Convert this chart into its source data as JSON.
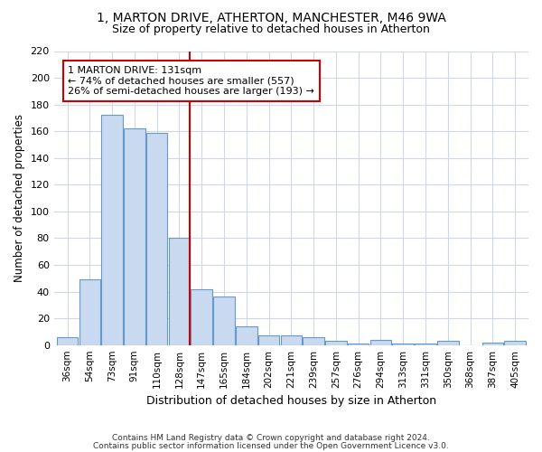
{
  "title": "1, MARTON DRIVE, ATHERTON, MANCHESTER, M46 9WA",
  "subtitle": "Size of property relative to detached houses in Atherton",
  "xlabel": "Distribution of detached houses by size in Atherton",
  "ylabel": "Number of detached properties",
  "categories": [
    "36sqm",
    "54sqm",
    "73sqm",
    "91sqm",
    "110sqm",
    "128sqm",
    "147sqm",
    "165sqm",
    "184sqm",
    "202sqm",
    "221sqm",
    "239sqm",
    "257sqm",
    "276sqm",
    "294sqm",
    "313sqm",
    "331sqm",
    "350sqm",
    "368sqm",
    "387sqm",
    "405sqm"
  ],
  "values": [
    6,
    49,
    172,
    162,
    159,
    80,
    42,
    36,
    14,
    7,
    7,
    6,
    3,
    1,
    4,
    1,
    1,
    3,
    0,
    2,
    3
  ],
  "bar_color": "#c8d9f0",
  "bar_edge_color": "#6699cc",
  "vline_color": "#cc0000",
  "vline_x": 5.47,
  "annotation_line1": "1 MARTON DRIVE: 131sqm",
  "annotation_line2": "← 74% of detached houses are smaller (557)",
  "annotation_line3": "26% of semi-detached houses are larger (193) →",
  "annotation_box_facecolor": "#ffffff",
  "annotation_box_edgecolor": "#cc0000",
  "ylim": [
    0,
    220
  ],
  "yticks": [
    0,
    20,
    40,
    60,
    80,
    100,
    120,
    140,
    160,
    180,
    200,
    220
  ],
  "footer1": "Contains HM Land Registry data © Crown copyright and database right 2024.",
  "footer2": "Contains public sector information licensed under the Open Government Licence v3.0.",
  "background_color": "#ffffff",
  "grid_color": "#d0d8e8",
  "title_fontsize": 10,
  "subtitle_fontsize": 9
}
